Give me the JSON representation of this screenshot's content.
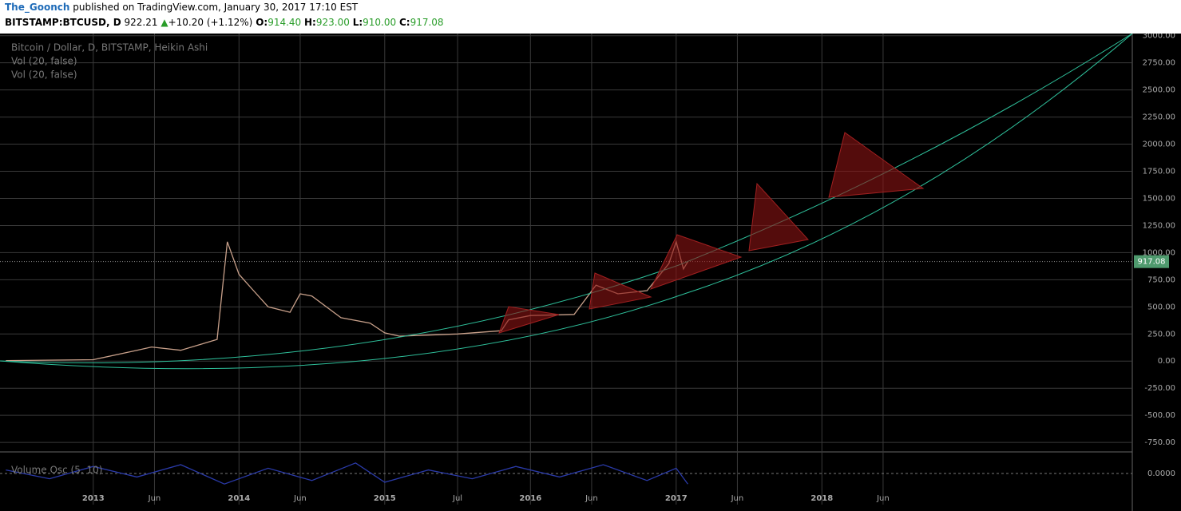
{
  "header": {
    "author": "The_Goonch",
    "published": "published on TradingView.com, January 30, 2017 17:10 EST",
    "symbol": "BITSTAMP:BTCUSD, D",
    "last": "922.21",
    "arrow": "▲",
    "change": "+10.20 (+1.12%)",
    "o_label": "O:",
    "o": "914.40",
    "h_label": "H:",
    "h": "923.00",
    "l_label": "L:",
    "l": "910.00",
    "c_label": "C:",
    "c": "917.08"
  },
  "chart_data": [
    {
      "type": "line",
      "legend": [
        "Bitcoin / Dollar, D, BITSTAMP, Heikin Ashi",
        "Vol (20, false)",
        "Vol (20, false)"
      ],
      "color": "#c8a08a",
      "grid": true,
      "x": [
        2012.4,
        2013.0,
        2013.3,
        2013.4,
        2013.6,
        2013.85,
        2013.92,
        2014.0,
        2014.1,
        2014.2,
        2014.35,
        2014.42,
        2014.5,
        2014.7,
        2014.9,
        2015.0,
        2015.1,
        2015.5,
        2015.8,
        2015.85,
        2016.0,
        2016.3,
        2016.45,
        2016.6,
        2016.8,
        2016.95,
        2017.0,
        2017.05,
        2017.08
      ],
      "values": [
        5,
        13,
        100,
        130,
        100,
        200,
        1100,
        800,
        650,
        500,
        450,
        620,
        600,
        400,
        350,
        260,
        230,
        250,
        280,
        380,
        420,
        430,
        700,
        620,
        650,
        900,
        1100,
        850,
        917.08
      ],
      "last_label": "917.08",
      "xlim": [
        2012.36,
        2020.13
      ],
      "xticks": [
        {
          "value": 2013,
          "label": "2013"
        },
        {
          "value": 2013.42,
          "label": "Jun"
        },
        {
          "value": 2014,
          "label": "2014"
        },
        {
          "value": 2014.42,
          "label": "Jun"
        },
        {
          "value": 2015,
          "label": "2015"
        },
        {
          "value": 2015.5,
          "label": "Jul"
        },
        {
          "value": 2016,
          "label": "2016"
        },
        {
          "value": 2016.42,
          "label": "Jun"
        },
        {
          "value": 2017,
          "label": "2017"
        },
        {
          "value": 2017.42,
          "label": "Jun"
        },
        {
          "value": 2018,
          "label": "2018"
        },
        {
          "value": 2018.42,
          "label": "Jun"
        }
      ],
      "ylim": [
        -830,
        3020
      ],
      "yticks": [
        {
          "value": -750,
          "label": "-750.00"
        },
        {
          "value": -500,
          "label": "-500.00"
        },
        {
          "value": -250,
          "label": "-250.00"
        },
        {
          "value": 0,
          "label": "0.00"
        },
        {
          "value": 250,
          "label": "250.00"
        },
        {
          "value": 500,
          "label": "500.00"
        },
        {
          "value": 750,
          "label": "750.00"
        },
        {
          "value": 1000,
          "label": "1000.00"
        },
        {
          "value": 1250,
          "label": "1250.00"
        },
        {
          "value": 1500,
          "label": "1500.00"
        },
        {
          "value": 1750,
          "label": "1750.00"
        },
        {
          "value": 2000,
          "label": "2000.00"
        },
        {
          "value": 2250,
          "label": "2250.00"
        },
        {
          "value": 2500,
          "label": "2500.00"
        },
        {
          "value": 2750,
          "label": "2750.00"
        },
        {
          "value": 3000,
          "label": "3000.00"
        }
      ]
    },
    {
      "type": "line",
      "legend": [
        "Volume Osc (5, 10)"
      ],
      "color": "#2a3aa8",
      "x": [
        2012.4,
        2012.7,
        2013.0,
        2013.3,
        2013.6,
        2013.9,
        2014.2,
        2014.5,
        2014.8,
        2015.0,
        2015.3,
        2015.6,
        2015.9,
        2016.2,
        2016.5,
        2016.8,
        2017.0,
        2017.08
      ],
      "values": [
        0.2,
        -0.3,
        0.4,
        -0.2,
        0.5,
        -0.6,
        0.3,
        -0.4,
        0.6,
        -0.5,
        0.2,
        -0.3,
        0.4,
        -0.2,
        0.5,
        -0.4,
        0.3,
        -0.6
      ],
      "xlim": [
        2012.36,
        2020.13
      ],
      "ylim": [
        -1,
        1
      ],
      "yticks": [
        {
          "value": 0,
          "label": "0.0000"
        }
      ]
    }
  ]
}
